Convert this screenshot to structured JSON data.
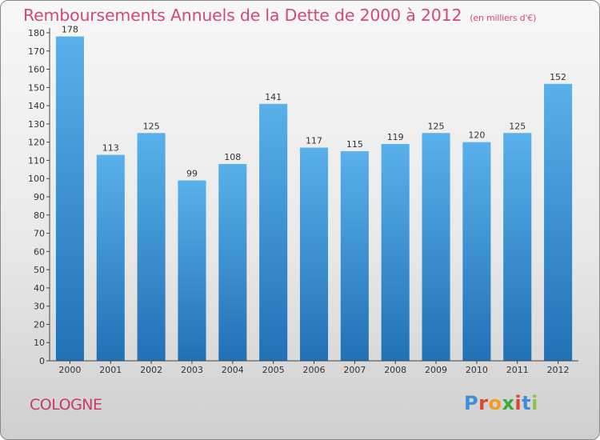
{
  "header": {
    "title": "Remboursements Annuels de la Dette de 2000 à 2012",
    "unit": "(en milliers d'€)"
  },
  "footer": {
    "city": "COLOGNE",
    "logo": "Proxiti"
  },
  "colors": {
    "bar_top": "#5ab0ea",
    "bar_bottom": "#2171b5",
    "title": "#d04a78",
    "axis": "#444444"
  },
  "chart_data": {
    "type": "bar",
    "categories": [
      "2000",
      "2001",
      "2002",
      "2003",
      "2004",
      "2005",
      "2006",
      "2007",
      "2008",
      "2009",
      "2010",
      "2011",
      "2012"
    ],
    "values": [
      178,
      113,
      125,
      99,
      108,
      141,
      117,
      115,
      119,
      125,
      120,
      125,
      152
    ],
    "ylim": [
      0,
      180
    ],
    "ytick_step": 10,
    "grid": false,
    "title": "Remboursements Annuels de la Dette de 2000 à 2012",
    "xlabel": "",
    "ylabel": ""
  }
}
